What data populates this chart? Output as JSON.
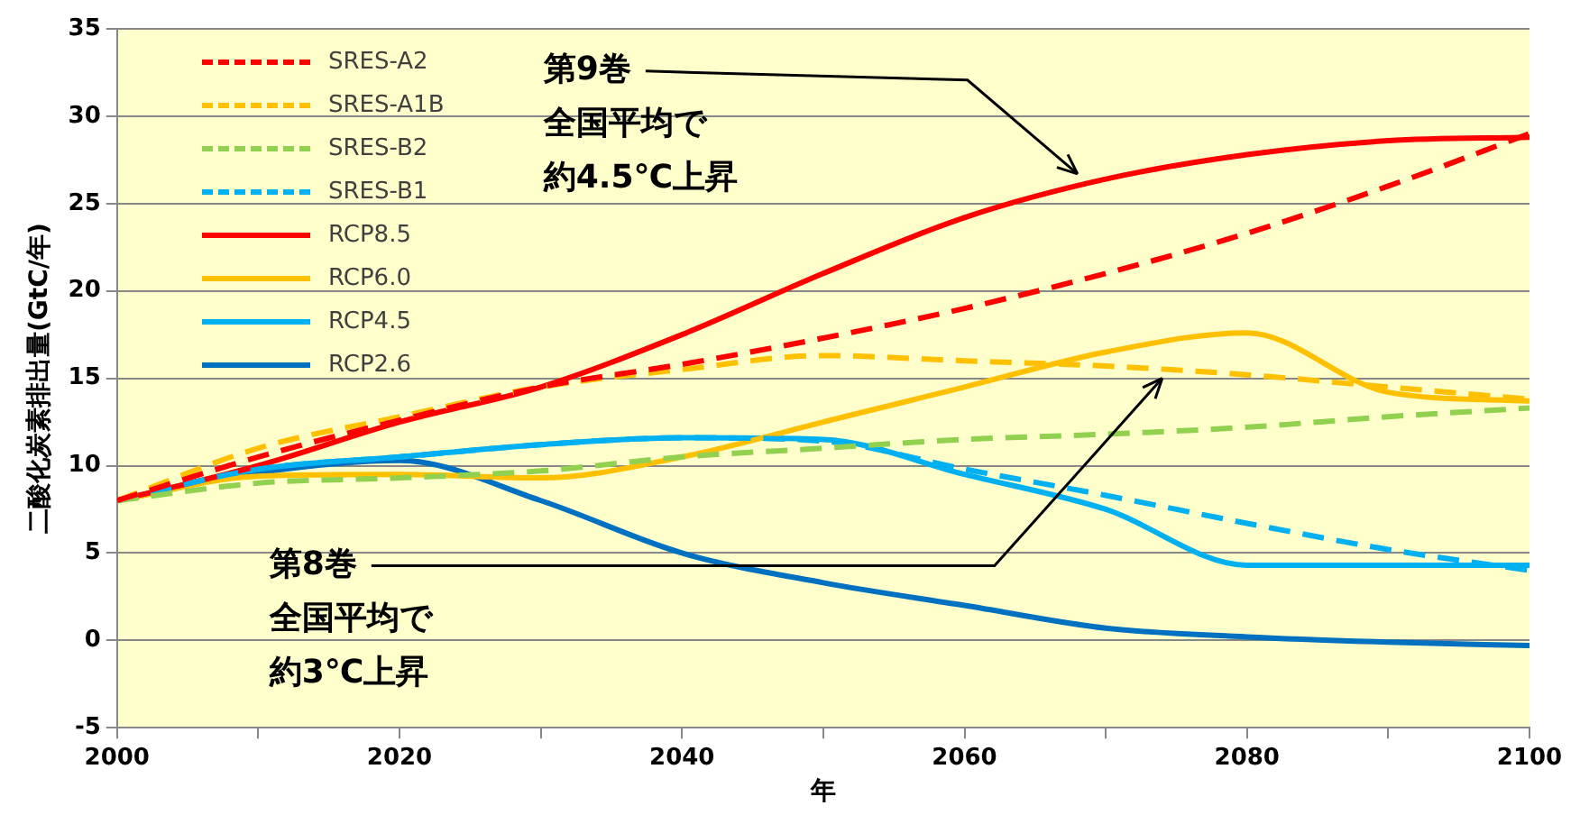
{
  "chart_data": {
    "type": "line",
    "xlabel": "年",
    "ylabel": "二酸化炭素排出量(GtC/年)",
    "x": [
      2000,
      2010,
      2020,
      2030,
      2040,
      2050,
      2060,
      2070,
      2080,
      2090,
      2100
    ],
    "series": [
      {
        "name": "SRES-A2",
        "color": "#ff0000",
        "line_style": "dashed",
        "values": [
          8,
          10.5,
          12.6,
          14.5,
          15.8,
          17.3,
          19,
          21,
          23.3,
          26,
          29
        ]
      },
      {
        "name": "SRES-A1B",
        "color": "#ffc000",
        "line_style": "dashed",
        "values": [
          8,
          11,
          12.8,
          14.5,
          15.5,
          16.3,
          16,
          15.7,
          15.2,
          14.5,
          13.8
        ]
      },
      {
        "name": "SRES-B2",
        "color": "#92d050",
        "line_style": "dashed",
        "values": [
          8,
          9,
          9.3,
          9.7,
          10.5,
          11,
          11.5,
          11.8,
          12.2,
          12.8,
          13.3
        ]
      },
      {
        "name": "SRES-B1",
        "color": "#00b0f0",
        "line_style": "dashed",
        "values": [
          8,
          9.8,
          10.5,
          11.2,
          11.6,
          11.4,
          9.8,
          8.3,
          6.7,
          5.2,
          4
        ]
      },
      {
        "name": "RCP8.5",
        "color": "#ff0000",
        "line_style": "solid",
        "values": [
          8,
          10,
          12.5,
          14.5,
          17.5,
          21,
          24.2,
          26.4,
          27.8,
          28.6,
          28.8
        ]
      },
      {
        "name": "RCP6.0",
        "color": "#ffc000",
        "line_style": "solid",
        "values": [
          8,
          9.4,
          9.5,
          9.3,
          10.5,
          12.5,
          14.5,
          16.5,
          17.6,
          14.2,
          13.7
        ]
      },
      {
        "name": "RCP4.5",
        "color": "#00b0f0",
        "line_style": "solid",
        "values": [
          8,
          9.8,
          10.5,
          11.2,
          11.6,
          11.5,
          9.5,
          7.5,
          4.3,
          4.3,
          4.3
        ]
      },
      {
        "name": "RCP2.6",
        "color": "#0070c0",
        "line_style": "solid",
        "values": [
          8,
          9.6,
          10.3,
          8,
          5,
          3.3,
          2,
          0.7,
          0.2,
          -0.1,
          -0.3
        ]
      }
    ],
    "xlim": [
      2000,
      2100
    ],
    "xticks": [
      2000,
      {
        "value": 2010,
        "label": null
      },
      2020,
      {
        "value": 2030,
        "label": null
      },
      2040,
      {
        "value": 2050,
        "label": null
      },
      2060,
      {
        "value": 2070,
        "label": null
      },
      2080,
      {
        "value": 2090,
        "label": null
      },
      2100
    ],
    "ylim": [
      -5,
      35
    ],
    "yticks": [
      -5,
      0,
      5,
      10,
      15,
      20,
      25,
      30,
      35
    ],
    "grid": "y",
    "legend": "top left",
    "marker": "none",
    "annotations": [
      {
        "text": "第9巻",
        "x": 2068,
        "y": 26.7
      },
      "全国平均で",
      "約4.5℃上昇",
      {
        "text": "第8巻",
        "x": 2074,
        "y": 15
      },
      "全国平均で",
      "約3℃上昇"
    ]
  }
}
